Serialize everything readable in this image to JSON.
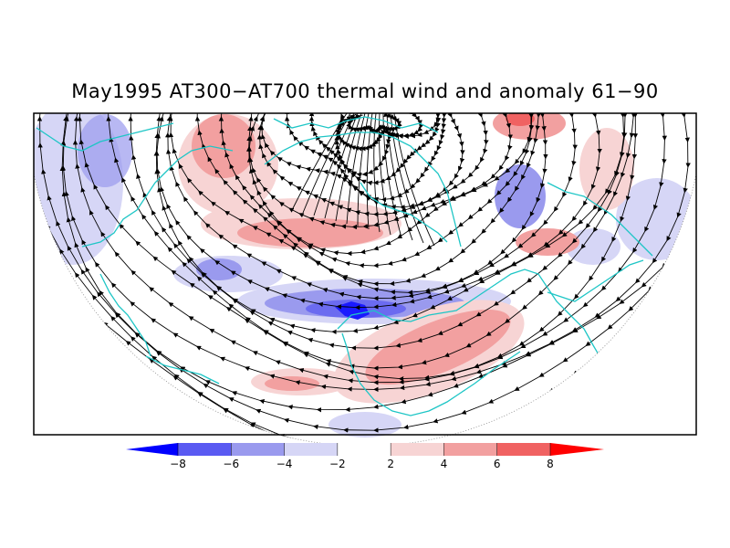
{
  "title": "May1995 AT300−AT700 thermal wind and anomaly 61−90",
  "colorbar": {
    "ticks": [
      "−8",
      "−6",
      "−4",
      "−2",
      "2",
      "4",
      "6",
      "8"
    ],
    "levels": [
      -8,
      -6,
      -4,
      -2,
      2,
      4,
      6,
      8
    ],
    "colors": [
      "#0000ff",
      "#5a5af2",
      "#9a9aee",
      "#d6d6f6",
      "#ffffff",
      "#f7d4d4",
      "#f2a0a0",
      "#f06262",
      "#ff0000"
    ]
  },
  "styles": {
    "coastline_color": "#1ec6c6",
    "streamline_color": "#000000",
    "frame_color": "#000000"
  }
}
